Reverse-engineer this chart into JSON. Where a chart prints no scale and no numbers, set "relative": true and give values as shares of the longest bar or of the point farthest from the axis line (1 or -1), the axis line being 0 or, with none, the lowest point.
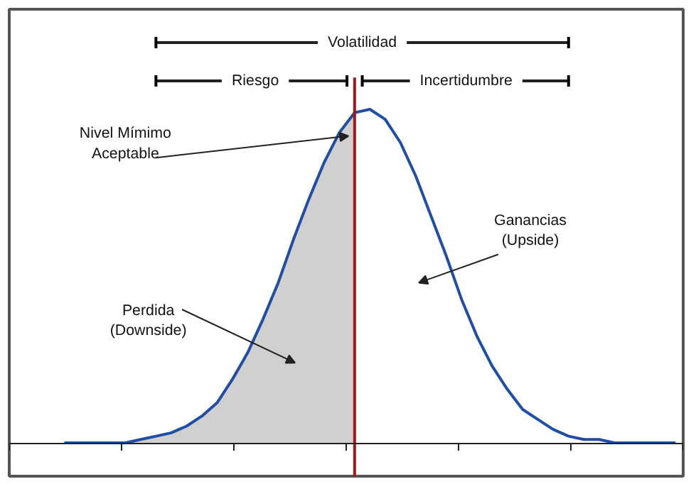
{
  "chart_data": {
    "type": "line",
    "relative": true,
    "categories": [
      null,
      null,
      null,
      null,
      null,
      null,
      null,
      null,
      null,
      null,
      null,
      null,
      null,
      null,
      null,
      null,
      null,
      null,
      null,
      null,
      null,
      null,
      null,
      null,
      null,
      null,
      null,
      null,
      null,
      null,
      null,
      null,
      null,
      null,
      null,
      null,
      null,
      null,
      null,
      null,
      null
    ],
    "series": [
      {
        "type": "area",
        "color": "#d0d0d0",
        "values": [
          0,
          0,
          0,
          0,
          0,
          0.01,
          0.02,
          0.03,
          0.05,
          0.08,
          0.12,
          0.19,
          0.27,
          0.37,
          0.48,
          0.61,
          0.73,
          0.84,
          0.93,
          0.99,
          null,
          null,
          null,
          null,
          null,
          null,
          null,
          null,
          null,
          null,
          null,
          null,
          null,
          null,
          null,
          null,
          null,
          null,
          null,
          null,
          null
        ]
      },
      {
        "color": "#1f4ea8",
        "values": [
          0,
          0,
          0,
          0,
          0,
          0.01,
          0.02,
          0.03,
          0.05,
          0.08,
          0.12,
          0.19,
          0.27,
          0.37,
          0.48,
          0.61,
          0.73,
          0.84,
          0.93,
          0.99,
          1,
          0.97,
          0.9,
          0.8,
          0.68,
          0.56,
          0.43,
          0.32,
          0.23,
          0.16,
          0.1,
          0.07,
          0.04,
          0.02,
          0.01,
          0.01,
          0,
          0,
          0,
          0,
          0
        ]
      }
    ],
    "annotations": [
      "Volatilidad",
      "Riesgo",
      "Incertidumbre",
      "Nivel Mímimo\nAceptable",
      "Perdida\n(Downside)",
      "Ganancias\n(Upside)"
    ],
    "grid": false,
    "marker": "none",
    "line_style": "solid"
  }
}
